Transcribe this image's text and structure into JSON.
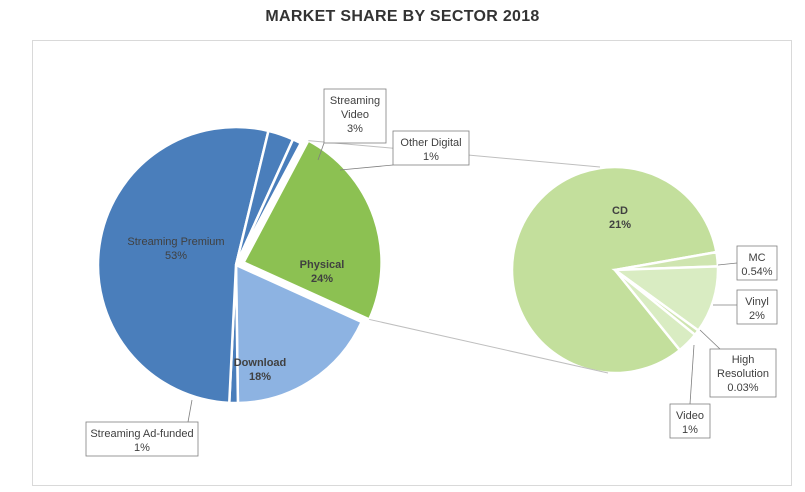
{
  "chart_data": {
    "type": "pie",
    "title": "MARKET SHARE BY SECTOR 2018",
    "primary": {
      "slices": [
        {
          "label": "Streaming Premium",
          "value": 53,
          "display": "53%",
          "color": "#4a7ebb"
        },
        {
          "label": "Streaming Video",
          "value": 3,
          "display": "3%",
          "color": "#4a7ebb"
        },
        {
          "label": "Other Digital",
          "value": 1,
          "display": "1%",
          "color": "#4a7ebb"
        },
        {
          "label": "Physical",
          "value": 24,
          "display": "24%",
          "color": "#8cc152"
        },
        {
          "label": "Download",
          "value": 18,
          "display": "18%",
          "color": "#8db3e2"
        },
        {
          "label": "Streaming Ad-funded",
          "value": 1,
          "display": "1%",
          "color": "#4a7ebb"
        }
      ]
    },
    "breakdown": {
      "of": "Physical",
      "slices": [
        {
          "label": "CD",
          "value": 21,
          "display": "21%",
          "color": "#c3df9c"
        },
        {
          "label": "MC",
          "value": 0.54,
          "display": "0.54%",
          "color": "#cfe5b0"
        },
        {
          "label": "Vinyl",
          "value": 2,
          "display": "2%",
          "color": "#d9ecc2"
        },
        {
          "label": "High Resolution",
          "value": 0.03,
          "display": "0.03%",
          "color": "#cfe5b0"
        },
        {
          "label": "Video",
          "value": 1,
          "display": "1%",
          "color": "#d9ecc2"
        }
      ]
    },
    "legend": "none"
  }
}
